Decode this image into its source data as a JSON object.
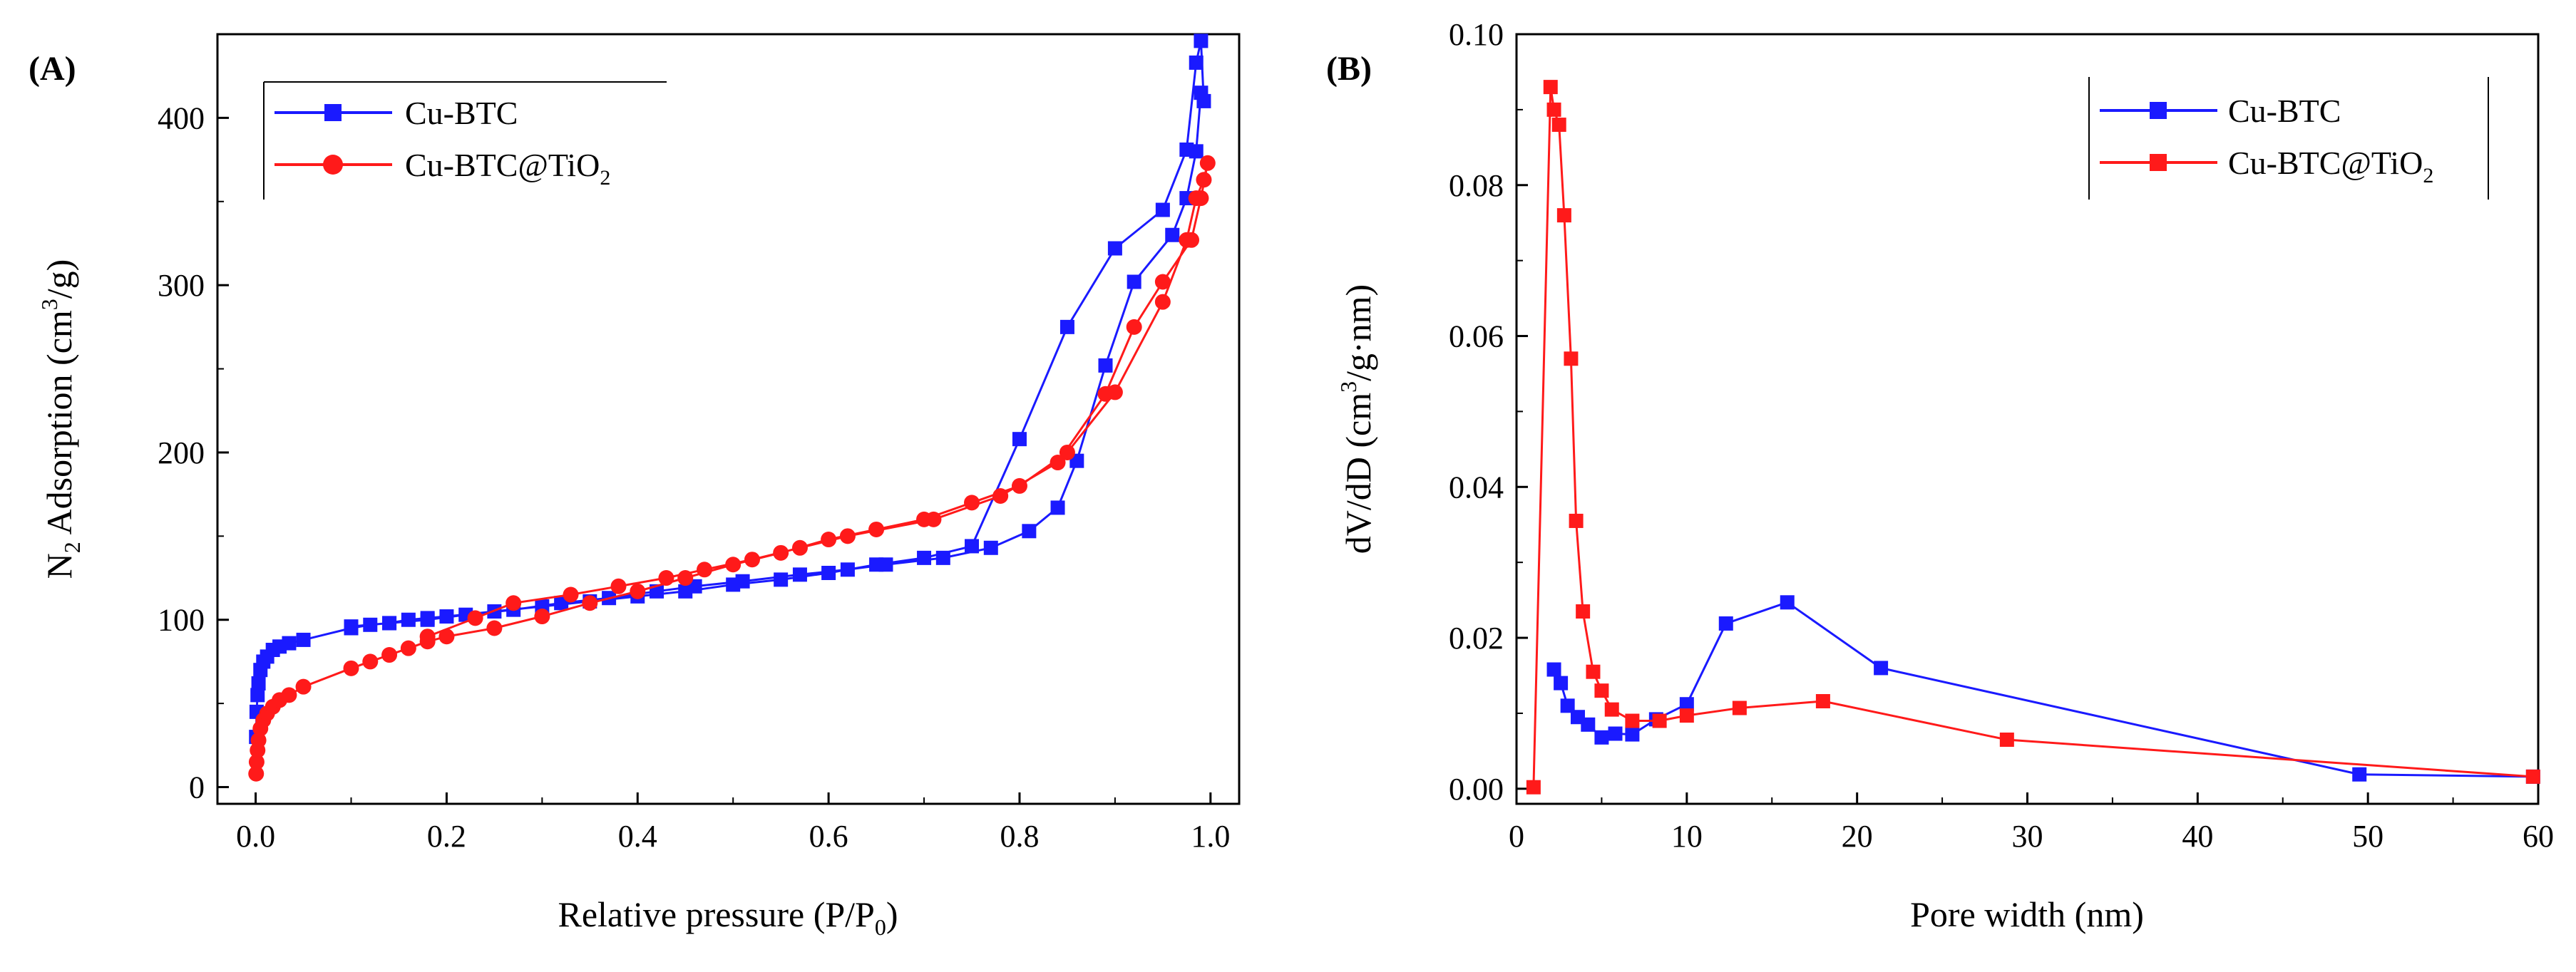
{
  "colors": {
    "blue": "#1a1aff",
    "red": "#ff1a1a",
    "axis": "#000000"
  },
  "chart_data": [
    {
      "type": "line",
      "panel_label": "(A)",
      "xlabel_prefix": "Relative pressure (P/P",
      "xlabel_sub": "0",
      "xlabel_suffix": ")",
      "ylabel_prefix": "N",
      "ylabel_sub": "2",
      "ylabel_mid": " Adsorption (cm",
      "ylabel_sup": "3",
      "ylabel_suffix": "/g)",
      "xlim": [
        -0.04,
        1.03
      ],
      "ylim": [
        -10,
        450
      ],
      "xticks": [
        0.0,
        0.2,
        0.4,
        0.6,
        0.8,
        1.0
      ],
      "xtick_labels": [
        "0.0",
        "0.2",
        "0.4",
        "0.6",
        "0.8",
        "1.0"
      ],
      "yticks": [
        0,
        100,
        200,
        300,
        400
      ],
      "ytick_labels": [
        "0",
        "100",
        "200",
        "300",
        "400"
      ],
      "legend": {
        "position": "top-left",
        "entries": [
          {
            "label": "Cu-BTC"
          },
          {
            "label_main": "Cu-BTC@TiO",
            "label_sub": "2"
          }
        ]
      },
      "series": [
        {
          "name": "Cu-BTC",
          "marker": "square",
          "color": "#1a1aff",
          "x": [
            0.0005,
            0.001,
            0.002,
            0.003,
            0.005,
            0.008,
            0.012,
            0.018,
            0.025,
            0.035,
            0.05,
            0.1,
            0.12,
            0.14,
            0.16,
            0.18,
            0.2,
            0.25,
            0.3,
            0.35,
            0.4,
            0.45,
            0.5,
            0.55,
            0.6,
            0.65,
            0.7,
            0.75,
            0.8,
            0.85,
            0.9,
            0.95,
            0.975,
            0.985,
            0.99,
            0.993,
            0.99,
            0.985,
            0.975,
            0.96,
            0.92,
            0.89,
            0.86,
            0.84,
            0.81,
            0.77,
            0.72,
            0.66,
            0.62,
            0.57,
            0.51,
            0.46,
            0.42,
            0.37,
            0.32,
            0.27,
            0.22,
            0.18,
            0.14,
            0.1
          ],
          "y": [
            30,
            45,
            55,
            62,
            70,
            75,
            78,
            82,
            84,
            86,
            88,
            95,
            97,
            98,
            100,
            101,
            102,
            105,
            108,
            111,
            114,
            117,
            121,
            124,
            128,
            133,
            137,
            144,
            208,
            275,
            322,
            345,
            381,
            433,
            446,
            410,
            415,
            380,
            352,
            330,
            302,
            252,
            195,
            167,
            153,
            143,
            137,
            133,
            130,
            127,
            123,
            120,
            117,
            113,
            110,
            106,
            103,
            100,
            98,
            96
          ]
        },
        {
          "name": "Cu-BTC@TiO2",
          "marker": "circle",
          "color": "#ff1a1a",
          "x": [
            0.0005,
            0.001,
            0.002,
            0.003,
            0.005,
            0.008,
            0.012,
            0.018,
            0.025,
            0.035,
            0.05,
            0.1,
            0.12,
            0.14,
            0.16,
            0.18,
            0.2,
            0.25,
            0.3,
            0.35,
            0.4,
            0.45,
            0.5,
            0.55,
            0.6,
            0.65,
            0.7,
            0.75,
            0.8,
            0.85,
            0.9,
            0.95,
            0.975,
            0.985,
            0.993,
            0.997,
            0.99,
            0.98,
            0.95,
            0.92,
            0.89,
            0.84,
            0.78,
            0.71,
            0.62,
            0.57,
            0.52,
            0.47,
            0.43,
            0.38,
            0.33,
            0.27,
            0.23,
            0.18
          ],
          "y": [
            8,
            15,
            22,
            28,
            35,
            40,
            44,
            48,
            52,
            55,
            60,
            71,
            75,
            79,
            83,
            87,
            90,
            95,
            102,
            110,
            117,
            125,
            133,
            140,
            148,
            154,
            160,
            170,
            180,
            200,
            236,
            290,
            327,
            352,
            363,
            373,
            352,
            327,
            302,
            275,
            235,
            194,
            174,
            160,
            150,
            143,
            136,
            130,
            125,
            120,
            115,
            110,
            101,
            90
          ]
        }
      ]
    },
    {
      "type": "line",
      "panel_label": "(B)",
      "xlabel": "Pore width (nm)",
      "ylabel_prefix": "dV/dD (cm",
      "ylabel_sup": "3",
      "ylabel_suffix": "/g·nm)",
      "xlim": [
        0,
        60
      ],
      "ylim": [
        -0.002,
        0.1
      ],
      "xticks": [
        0,
        10,
        20,
        30,
        40,
        50,
        60
      ],
      "xtick_labels": [
        "0",
        "10",
        "20",
        "30",
        "40",
        "50",
        "60"
      ],
      "yticks": [
        0.0,
        0.02,
        0.04,
        0.06,
        0.08,
        0.1
      ],
      "ytick_labels": [
        "0.00",
        "0.02",
        "0.04",
        "0.06",
        "0.08",
        "0.10"
      ],
      "legend": {
        "position": "top-right",
        "entries": [
          {
            "label": "Cu-BTC"
          },
          {
            "label_main": "Cu-BTC@TiO",
            "label_sub": "2"
          }
        ]
      },
      "series": [
        {
          "name": "Cu-BTC",
          "marker": "square",
          "color": "#1a1aff",
          "x": [
            2.2,
            2.6,
            3.0,
            3.6,
            4.2,
            5.0,
            5.8,
            6.8,
            8.2,
            10.0,
            12.3,
            15.9,
            21.4,
            49.5,
            59.7
          ],
          "y": [
            0.0158,
            0.014,
            0.011,
            0.0095,
            0.0085,
            0.0068,
            0.0073,
            0.0072,
            0.0092,
            0.0112,
            0.0219,
            0.0247,
            0.016,
            0.0019,
            0.0016
          ]
        },
        {
          "name": "Cu-BTC@TiO2",
          "marker": "square",
          "color": "#ff1a1a",
          "x": [
            1.0,
            2.0,
            2.2,
            2.5,
            2.8,
            3.2,
            3.5,
            3.9,
            4.5,
            5.0,
            5.6,
            6.8,
            8.4,
            10.0,
            13.1,
            18.0,
            28.8,
            59.7
          ],
          "y": [
            0.0002,
            0.093,
            0.09,
            0.088,
            0.076,
            0.057,
            0.0355,
            0.0235,
            0.0155,
            0.013,
            0.0105,
            0.009,
            0.009,
            0.0097,
            0.0107,
            0.0116,
            0.0065,
            0.0016
          ]
        }
      ]
    }
  ]
}
